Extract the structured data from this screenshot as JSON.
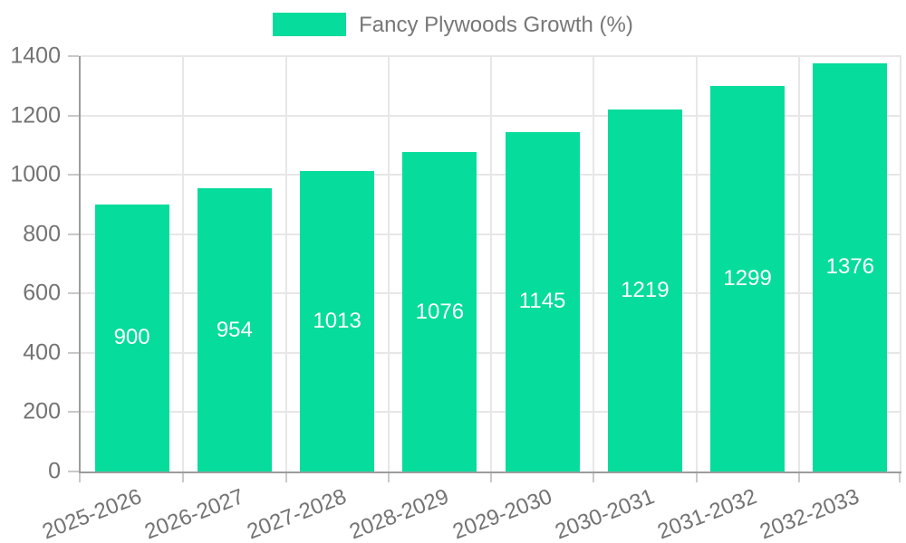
{
  "chart_data": {
    "type": "bar",
    "title": "Fancy Plywoods Growth (%)",
    "categories": [
      "2025-2026",
      "2026-2027",
      "2027-2028",
      "2028-2029",
      "2029-2030",
      "2030-2031",
      "2031-2032",
      "2032-2033"
    ],
    "series": [
      {
        "name": "Fancy Plywoods Growth (%)",
        "values": [
          900,
          954,
          1013,
          1076,
          1145,
          1219,
          1299,
          1376
        ]
      }
    ],
    "value_labels": [
      "900",
      "954",
      "1013",
      "1076",
      "1145",
      "1219",
      "1299",
      "1376"
    ],
    "xlabel": "",
    "ylabel": "",
    "ylim": [
      0,
      1400
    ],
    "ytick_step": 200,
    "ytick_labels": [
      "0",
      "200",
      "400",
      "600",
      "800",
      "1000",
      "1200",
      "1400"
    ],
    "grid": true,
    "legend_position": "top",
    "colors": {
      "bar": "#06DC9B",
      "value_label": "#ffffff",
      "axis_line": "#9c9c9c",
      "tick_mark": "#c9c9c9",
      "gridline": "#e7e7e7",
      "tick_text": "#737373",
      "legend_text": "#777777"
    }
  }
}
